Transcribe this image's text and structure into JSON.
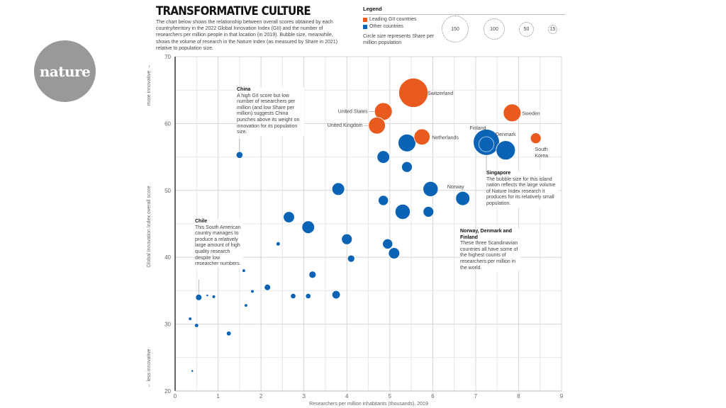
{
  "logo": {
    "text": "nature"
  },
  "header": {
    "title": "TRANSFORMATIVE CULTURE",
    "subtitle": "The chart below shows the relationship between overall scores obtained by each country/territory in the 2022 Global Innovation Index (GII) and the number of researchers per million people in that location (in 2019). Bubble size, meanwhile, shows the volume of research in the Nature Index (as measured by Share in 2021) relative to population size."
  },
  "legend": {
    "title": "Legend",
    "items": [
      {
        "label": "Leading GII countries",
        "color": "#e85a1e"
      },
      {
        "label": "Other countries",
        "color": "#0b63b5"
      }
    ],
    "size_note": "Circle size represents Share per million population",
    "size_keys": [
      "150",
      "100",
      "50",
      "15"
    ]
  },
  "annotations": {
    "china": {
      "title": "China",
      "text": "A high GII score but low number of researchers per million (and low Share per million) suggests China punches above its weight on innovation for its population size."
    },
    "chile": {
      "title": "Chile",
      "text": "This South American country manages to produce a relatively large amount of high quality research despite low researcher numbers."
    },
    "singapore": {
      "title": "Singapore",
      "text": "The bubble size for this island nation reflects the large volume of Nature Index research it produces for its relatively small population."
    },
    "nordic": {
      "title": "Norway, Denmark and Finland",
      "text": "These three Scandinavian countries all have some of the highest counts of researchers per million in the world."
    }
  },
  "chart_data": {
    "type": "scatter",
    "title": "TRANSFORMATIVE CULTURE",
    "xlabel": "Researchers per million inhabitants (thousands), 2019",
    "ylabel": "Global Innovation Index overall score",
    "ylabel_top": "more innovative →",
    "ylabel_bottom": "← less innovative",
    "xlim": [
      0,
      9
    ],
    "ylim": [
      20,
      70
    ],
    "xticks": [
      "0",
      "1",
      "2",
      "3",
      "4",
      "5",
      "6",
      "7",
      "8",
      "9"
    ],
    "yticks": [
      "20",
      "30",
      "40",
      "50",
      "60",
      "70"
    ],
    "grid": true,
    "series": [
      {
        "name": "Leading GII countries",
        "color": "#e85a1e",
        "points": [
          {
            "label": "Switzerland",
            "x": 5.55,
            "y": 64.6,
            "share": 150
          },
          {
            "label": "United States",
            "x": 4.85,
            "y": 61.8,
            "share": 55
          },
          {
            "label": "United Kingdom",
            "x": 4.7,
            "y": 59.7,
            "share": 50
          },
          {
            "label": "Sweden",
            "x": 7.85,
            "y": 61.6,
            "share": 55
          },
          {
            "label": "Netherlands",
            "x": 5.75,
            "y": 58.0,
            "share": 45
          },
          {
            "label": "South Korea",
            "x": 8.4,
            "y": 57.8,
            "share": 20
          }
        ]
      },
      {
        "name": "Other countries",
        "color": "#0b63b5",
        "points": [
          {
            "label": "Finland",
            "x": 7.25,
            "y": 57.2,
            "share": 120
          },
          {
            "label": "Singapore",
            "x": 7.25,
            "y": 56.9,
            "share": 40
          },
          {
            "label": "Denmark",
            "x": 7.7,
            "y": 56.0,
            "share": 65
          },
          {
            "label": "Norway",
            "x": 6.7,
            "y": 48.8,
            "share": 35
          },
          {
            "label": "China",
            "x": 1.5,
            "y": 55.3,
            "share": 8
          },
          {
            "label": "Chile",
            "x": 0.55,
            "y": 34.0,
            "share": 7
          },
          {
            "label": "",
            "x": 5.4,
            "y": 57.1,
            "share": 55
          },
          {
            "label": "",
            "x": 4.85,
            "y": 55.0,
            "share": 28
          },
          {
            "label": "",
            "x": 5.4,
            "y": 53.5,
            "share": 20
          },
          {
            "label": "",
            "x": 3.8,
            "y": 50.2,
            "share": 28
          },
          {
            "label": "",
            "x": 5.95,
            "y": 50.2,
            "share": 40
          },
          {
            "label": "",
            "x": 4.85,
            "y": 48.5,
            "share": 18
          },
          {
            "label": "",
            "x": 5.3,
            "y": 46.8,
            "share": 40
          },
          {
            "label": "",
            "x": 5.9,
            "y": 46.8,
            "share": 20
          },
          {
            "label": "",
            "x": 2.65,
            "y": 46.0,
            "share": 22
          },
          {
            "label": "",
            "x": 3.1,
            "y": 44.5,
            "share": 28
          },
          {
            "label": "",
            "x": 4.0,
            "y": 42.7,
            "share": 20
          },
          {
            "label": "",
            "x": 4.95,
            "y": 42.0,
            "share": 18
          },
          {
            "label": "",
            "x": 2.4,
            "y": 42.0,
            "share": 3
          },
          {
            "label": "",
            "x": 5.1,
            "y": 40.6,
            "share": 22
          },
          {
            "label": "",
            "x": 4.1,
            "y": 39.8,
            "share": 9
          },
          {
            "label": "",
            "x": 1.6,
            "y": 38.0,
            "share": 2
          },
          {
            "label": "",
            "x": 3.2,
            "y": 37.4,
            "share": 9
          },
          {
            "label": "",
            "x": 2.15,
            "y": 35.5,
            "share": 7
          },
          {
            "label": "",
            "x": 1.8,
            "y": 34.9,
            "share": 2
          },
          {
            "label": "",
            "x": 3.75,
            "y": 34.4,
            "share": 12
          },
          {
            "label": "",
            "x": 2.75,
            "y": 34.2,
            "share": 5
          },
          {
            "label": "",
            "x": 3.1,
            "y": 34.2,
            "share": 5
          },
          {
            "label": "",
            "x": 0.9,
            "y": 34.1,
            "share": 2
          },
          {
            "label": "",
            "x": 0.75,
            "y": 34.3,
            "share": 1
          },
          {
            "label": "",
            "x": 1.65,
            "y": 32.8,
            "share": 2
          },
          {
            "label": "",
            "x": 0.35,
            "y": 30.8,
            "share": 2
          },
          {
            "label": "",
            "x": 0.5,
            "y": 29.8,
            "share": 3
          },
          {
            "label": "",
            "x": 1.25,
            "y": 28.6,
            "share": 4
          },
          {
            "label": "",
            "x": 0.4,
            "y": 23.0,
            "share": 1
          }
        ]
      }
    ]
  }
}
